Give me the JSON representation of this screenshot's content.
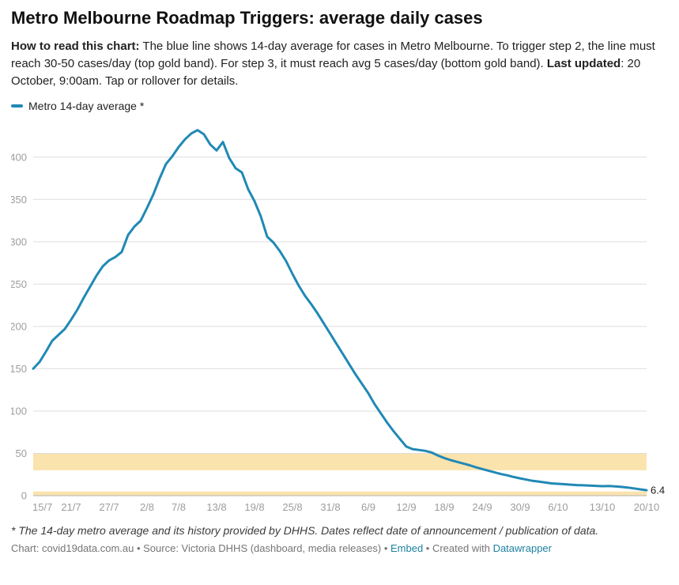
{
  "header": {
    "title": "Metro Melbourne Roadmap Triggers: average daily cases",
    "intro_bold1": "How to read this chart:",
    "intro_text1": " The blue line shows 14-day average for cases in Metro Melbourne. To trigger step 2, the line must reach 30-50 cases/day (top gold band). For step 3, it must reach avg 5 cases/day (bottom gold band). ",
    "intro_bold2": "Last updated",
    "intro_text2": ": 20 October, 9:00am. Tap or rollover for details."
  },
  "legend": {
    "label": "Metro 14-day average *"
  },
  "footer": {
    "footnote": "* The 14-day metro average and its history provided by DHHS. Dates reflect date of announcement / publication of data.",
    "credit_prefix": "Chart: covid19data.com.au • Source: Victoria DHHS (dashboard, media releases) • ",
    "embed_link": "Embed",
    "credit_middle": " • Created with ",
    "datawrapper_link": "Datawrapper"
  },
  "chart_data": {
    "type": "line",
    "title": "Metro Melbourne Roadmap Triggers: average daily cases",
    "series_name": "Metro 14-day average *",
    "unit": "cases/day",
    "ylim": [
      0,
      440
    ],
    "y_ticks": [
      0,
      50,
      100,
      150,
      200,
      250,
      300,
      350,
      400
    ],
    "x_tick_labels": [
      "15/7",
      "21/7",
      "27/7",
      "2/8",
      "7/8",
      "13/8",
      "19/8",
      "25/8",
      "31/8",
      "6/9",
      "12/9",
      "18/9",
      "24/9",
      "30/9",
      "6/10",
      "13/10",
      "20/10"
    ],
    "x_tick_indices": [
      0,
      6,
      12,
      18,
      23,
      29,
      35,
      41,
      47,
      53,
      59,
      65,
      71,
      77,
      83,
      90,
      97
    ],
    "bands": [
      {
        "label": "step 2 trigger band (30-50 cases/day)",
        "from": 30,
        "to": 50
      },
      {
        "label": "step 3 trigger band (avg 5 cases/day)",
        "from": 0,
        "to": 5
      }
    ],
    "band_color": "#fbe3ae",
    "line_color": "#2089b5",
    "grid_color": "#dedede",
    "baseline_color": "#b3b3b3",
    "axis_label_color": "#9d9d9d",
    "end_label": "6.4",
    "legend_position": "top-left",
    "grid": true,
    "dates": [
      "15/7",
      "16/7",
      "17/7",
      "18/7",
      "19/7",
      "20/7",
      "21/7",
      "22/7",
      "23/7",
      "24/7",
      "25/7",
      "26/7",
      "27/7",
      "28/7",
      "29/7",
      "30/7",
      "31/7",
      "1/8",
      "2/8",
      "3/8",
      "4/8",
      "5/8",
      "6/8",
      "7/8",
      "8/8",
      "9/8",
      "10/8",
      "11/8",
      "12/8",
      "13/8",
      "14/8",
      "15/8",
      "16/8",
      "17/8",
      "18/8",
      "19/8",
      "20/8",
      "21/8",
      "22/8",
      "23/8",
      "24/8",
      "25/8",
      "26/8",
      "27/8",
      "28/8",
      "29/8",
      "30/8",
      "31/8",
      "1/9",
      "2/9",
      "3/9",
      "4/9",
      "5/9",
      "6/9",
      "7/9",
      "8/9",
      "9/9",
      "10/9",
      "11/9",
      "12/9",
      "13/9",
      "14/9",
      "15/9",
      "16/9",
      "17/9",
      "18/9",
      "19/9",
      "20/9",
      "21/9",
      "22/9",
      "23/9",
      "24/9",
      "25/9",
      "26/9",
      "27/9",
      "28/9",
      "29/9",
      "30/9",
      "1/10",
      "2/10",
      "3/10",
      "4/10",
      "5/10",
      "6/10",
      "7/10",
      "8/10",
      "9/10",
      "10/10",
      "11/10",
      "12/10",
      "13/10",
      "14/10",
      "15/10",
      "16/10",
      "17/10",
      "18/10",
      "19/10",
      "20/10"
    ],
    "values": [
      150,
      158,
      170,
      183,
      190,
      197,
      208,
      220,
      234,
      247,
      260,
      271,
      278,
      282,
      288,
      308,
      318,
      325,
      340,
      356,
      375,
      392,
      401,
      412,
      421,
      428,
      432,
      427,
      415,
      408,
      418,
      399,
      387,
      382,
      362,
      348,
      330,
      306,
      299,
      289,
      277,
      262,
      248,
      236,
      226,
      215,
      203,
      191,
      179,
      167,
      155,
      143,
      132,
      121,
      108,
      97,
      86,
      76,
      67,
      58,
      55,
      54,
      53,
      51,
      47.5,
      44.5,
      42,
      40,
      38,
      36,
      33.5,
      31.5,
      29.5,
      27.5,
      25.5,
      24,
      22,
      20.5,
      19,
      17.5,
      16.5,
      15.5,
      14.5,
      14,
      13.5,
      13,
      12.5,
      12.2,
      12,
      11.6,
      11.2,
      11.4,
      11,
      10.4,
      9.6,
      8.6,
      7.5,
      6.4
    ]
  }
}
